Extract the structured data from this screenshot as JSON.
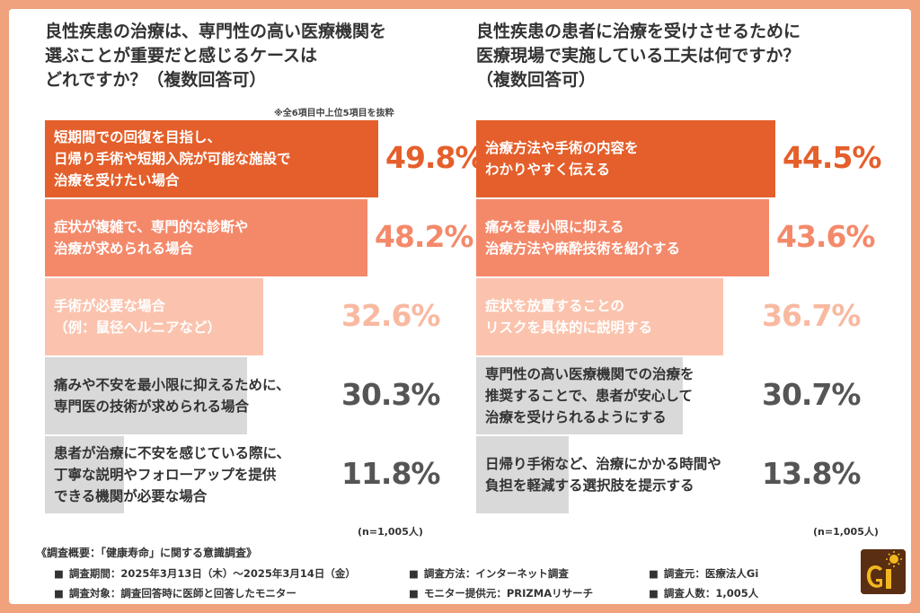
{
  "colors": {
    "background": "#f0a27d",
    "bar_bg": "#ededed",
    "text_dark": "#333333",
    "pct_gray": "#555555"
  },
  "left_panel": {
    "title": "良性疾患の治療は、専門性の高い医療機関を\n選ぶことが重要だと感じるケースは\nどれですか？（複数回答可）",
    "note": "※全6項目中上位5項目を抜粋",
    "n_label": "(n=1,005人)"
  },
  "right_panel": {
    "title": "良性疾患の患者に治療を受けさせるために\n医療現場で実施している工夫は何ですか？\n（複数回答可）",
    "n_label": "(n=1,005人)"
  },
  "chart_data": [
    {
      "type": "bar",
      "orientation": "horizontal",
      "categories": [
        "短期間での回復を目指し、\n日帰り手術や短期入院が可能な施設で\n治療を受けたい場合",
        "症状が複雑で、専門的な診断や\n治療が求められる場合",
        "手術が必要な場合\n（例：鼠径ヘルニアなど）",
        "痛みや不安を最小限に抑えるために、\n専門医の技術が求められる場合",
        "患者が治療に不安を感じている際に、\n丁寧な説明やフォローアップを提供\nできる機関が必要な場合"
      ],
      "values": [
        49.8,
        48.2,
        32.6,
        30.3,
        11.8
      ],
      "value_labels": [
        "49.8%",
        "48.2%",
        "32.6%",
        "30.3%",
        "11.8%"
      ],
      "bar_colors": [
        "#e45f2b",
        "#f4896a",
        "#fbc3ad",
        "#d9d9d9",
        "#d9d9d9"
      ],
      "label_colors": [
        "#ffffff",
        "#ffffff",
        "#ffffff",
        "#333333",
        "#333333"
      ],
      "pct_colors": [
        "#e45f2b",
        "#f4896a",
        "#f8b9a0",
        "#555555",
        "#555555"
      ],
      "xlim": [
        0,
        100
      ]
    },
    {
      "type": "bar",
      "orientation": "horizontal",
      "categories": [
        "治療方法や手術の内容を\nわかりやすく伝える",
        "痛みを最小限に抑える\n治療方法や麻酔技術を紹介する",
        "症状を放置することの\nリスクを具体的に説明する",
        "専門性の高い医療機関での治療を\n推奨することで、患者が安心して\n治療を受けられるようにする",
        "日帰り手術など、治療にかかる時間や\n負担を軽減する選択肢を提示する"
      ],
      "values": [
        44.5,
        43.6,
        36.7,
        30.7,
        13.8
      ],
      "value_labels": [
        "44.5%",
        "43.6%",
        "36.7%",
        "30.7%",
        "13.8%"
      ],
      "bar_colors": [
        "#e45f2b",
        "#f4896a",
        "#fbc3ad",
        "#d9d9d9",
        "#d9d9d9"
      ],
      "label_colors": [
        "#ffffff",
        "#ffffff",
        "#ffffff",
        "#333333",
        "#333333"
      ],
      "pct_colors": [
        "#e45f2b",
        "#f4896a",
        "#f8b9a0",
        "#555555",
        "#555555"
      ],
      "xlim": [
        0,
        100
      ]
    }
  ],
  "footer": {
    "title": "《調査概要：「健康寿命」に関する意識調査》",
    "items": [
      "調査期間：2025年3月13日（木）〜2025年3月14日（金）",
      "調査方法：インターネット調査",
      "調査元：医療法人Gi",
      "調査対象：調査回答時に医師と回答したモニター",
      "モニター提供元：PRIZMAリサーチ",
      "調査人数：1,005人"
    ],
    "bullet": "■"
  },
  "logo": {
    "text": "GI"
  }
}
